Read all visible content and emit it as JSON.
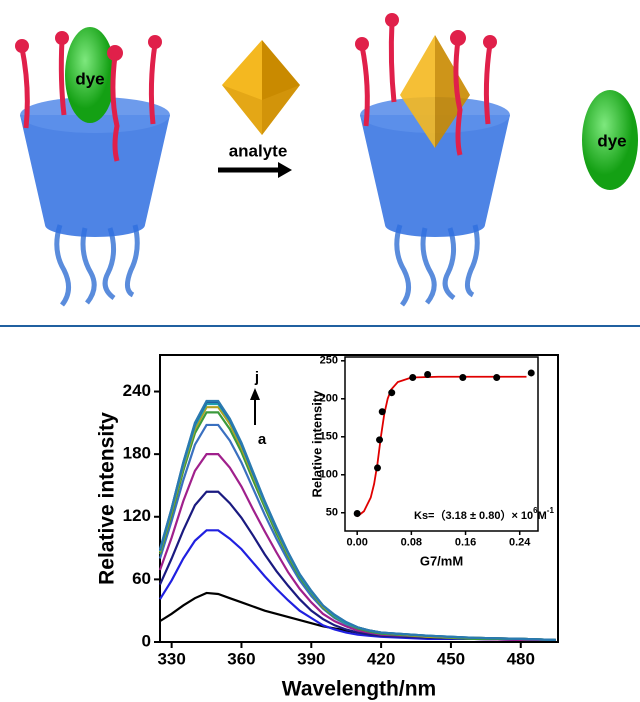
{
  "diagram": {
    "labels": [
      "dye",
      "analyte",
      "dye"
    ]
  },
  "chart_data": [
    {
      "type": "line",
      "xlabel": "Wavelength/nm",
      "ylabel": "Relative intensity",
      "xlim": [
        325,
        496
      ],
      "ylim": [
        0,
        275
      ],
      "xticks": [
        330,
        360,
        390,
        420,
        450,
        480
      ],
      "yticks": [
        0,
        60,
        120,
        180,
        240
      ],
      "annotations": [
        "j",
        "a"
      ],
      "x": [
        325,
        330,
        335,
        340,
        345,
        350,
        355,
        360,
        365,
        370,
        375,
        380,
        385,
        390,
        395,
        400,
        405,
        410,
        415,
        420,
        440,
        460,
        480,
        495
      ],
      "series": [
        {
          "color": "#000000",
          "values": [
            20,
            27,
            35,
            42,
            47,
            46,
            42,
            38,
            34,
            30,
            27,
            24,
            21,
            18,
            15,
            13,
            11,
            9,
            8,
            7,
            5,
            4,
            3,
            2
          ]
        },
        {
          "color": "#2020e0",
          "values": [
            41,
            59,
            80,
            97,
            107,
            107,
            99,
            89,
            76,
            63,
            51,
            40,
            30,
            23,
            16,
            12,
            9,
            7,
            6,
            5,
            3,
            3,
            2,
            2
          ]
        },
        {
          "color": "#1a1a80",
          "values": [
            55,
            80,
            107,
            131,
            144,
            144,
            133,
            119,
            102,
            84,
            68,
            54,
            41,
            30,
            22,
            16,
            12,
            9,
            7,
            6,
            4,
            3,
            2,
            2
          ]
        },
        {
          "color": "#a0208c",
          "values": [
            69,
            100,
            135,
            164,
            180,
            180,
            167,
            149,
            127,
            106,
            86,
            67,
            51,
            38,
            27,
            20,
            15,
            11,
            9,
            7,
            5,
            3,
            2,
            2
          ]
        },
        {
          "color": "#3a70c0",
          "values": [
            80,
            116,
            155,
            189,
            208,
            208,
            193,
            172,
            147,
            122,
            99,
            78,
            59,
            44,
            32,
            23,
            17,
            13,
            10,
            8,
            5,
            3,
            3,
            2
          ]
        },
        {
          "color": "#3c9a3c",
          "values": [
            84,
            122,
            164,
            200,
            220,
            220,
            204,
            182,
            155,
            129,
            104,
            82,
            62,
            47,
            33,
            24,
            18,
            13,
            10,
            8,
            5,
            3,
            3,
            2
          ]
        },
        {
          "color": "#b0a020",
          "values": [
            86,
            125,
            168,
            204,
            225,
            225,
            209,
            186,
            159,
            132,
            107,
            84,
            64,
            48,
            34,
            25,
            18,
            14,
            11,
            9,
            5,
            4,
            3,
            2
          ]
        },
        {
          "color": "#20a0b0",
          "values": [
            87,
            127,
            170,
            207,
            228,
            228,
            212,
            189,
            161,
            133,
            108,
            85,
            64,
            48,
            35,
            25,
            18,
            14,
            11,
            9,
            6,
            4,
            3,
            2
          ]
        },
        {
          "color": "#2060a0",
          "values": [
            88,
            128,
            172,
            209,
            230,
            230,
            213,
            190,
            162,
            135,
            109,
            86,
            65,
            49,
            35,
            26,
            19,
            14,
            11,
            9,
            6,
            4,
            3,
            2
          ]
        },
        {
          "color": "#2a7ab0",
          "values": [
            89,
            128,
            172,
            210,
            231,
            231,
            214,
            191,
            163,
            135,
            110,
            86,
            65,
            49,
            35,
            26,
            19,
            14,
            11,
            9,
            6,
            4,
            3,
            2
          ]
        }
      ]
    },
    {
      "type": "scatter",
      "xlabel": "G7/mM",
      "ylabel": "Relative intensity",
      "xlim": [
        -0.018,
        0.267
      ],
      "ylim": [
        26,
        255
      ],
      "xticks": [
        {
          "value": 0,
          "label": "0.00"
        },
        0.08,
        0.16,
        0.24
      ],
      "yticks": [
        50,
        100,
        150,
        200,
        250
      ],
      "annotation": [
        "Ks=（3.18 ± 0.80）× 10",
        "6",
        "M",
        "-1"
      ],
      "series": [
        {
          "mode": "line",
          "color": "#e00000",
          "x": [
            0,
            0.01,
            0.02,
            0.025,
            0.03,
            0.035,
            0.04,
            0.045,
            0.05,
            0.06,
            0.08,
            0.12,
            0.16,
            0.2,
            0.25
          ],
          "values": [
            45,
            52,
            70,
            88,
            115,
            150,
            180,
            200,
            212,
            222,
            228,
            229,
            229,
            229,
            229
          ]
        },
        {
          "mode": "scatter",
          "color": "#000000",
          "x": [
            0,
            0.03,
            0.033,
            0.037,
            0.051,
            0.082,
            0.104,
            0.156,
            0.206,
            0.257
          ],
          "values": [
            49,
            109,
            146,
            183,
            208,
            228,
            232,
            228,
            228,
            234
          ]
        }
      ]
    }
  ]
}
